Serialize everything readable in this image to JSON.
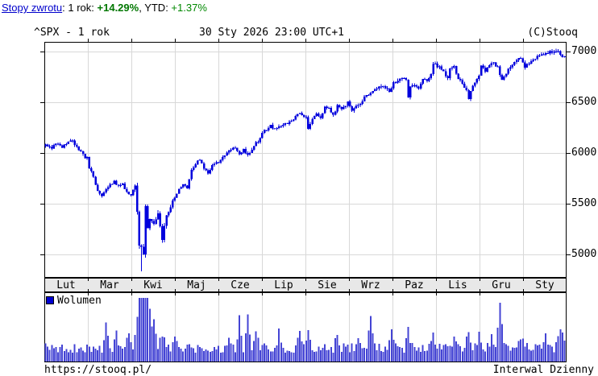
{
  "header": {
    "link_label": "Stopy zwrotu",
    "sep1": ": 1 rok: ",
    "return_1y": "+14.29%",
    "sep2": ", YTD: ",
    "return_ytd": "+1.37%"
  },
  "chart": {
    "title_left": "^SPX - 1 rok",
    "title_center": "30 Sty 2026 23:00 UTC+1",
    "title_right": "(C)Stooq"
  },
  "volume_pane": {
    "legend_label": "Wolumen"
  },
  "footer": {
    "url": "https://stooq.pl/",
    "interval_label": "Interwal Dzienny"
  },
  "colors": {
    "candle": "#0000dd",
    "volume_bar": "#4444d4",
    "volume_swatch": "#0000d0",
    "grid": "#d8d8d8",
    "border": "#000000",
    "band_bg": "#e8e8e8",
    "link": "#0000cc",
    "gain_bold": "#007700",
    "gain": "#008800"
  },
  "chart_data": {
    "type": "candlestick+volume",
    "symbol": "^SPX",
    "range": "1 rok",
    "timestamp": "30 Sty 2026 23:00 UTC+1",
    "interval": "Dzienny",
    "legend": "Wolumen",
    "months": [
      "Lut",
      "Mar",
      "Kwi",
      "Maj",
      "Cze",
      "Lip",
      "Sie",
      "Wrz",
      "Paz",
      "Lis",
      "Gru",
      "Sty"
    ],
    "y_ticks": [
      7000,
      6500,
      6000,
      5500,
      5000
    ],
    "y_axis_side": "right",
    "grid": true,
    "y_range_approx": [
      4770,
      7090
    ],
    "trading_days": 250,
    "returns": {
      "one_year_pct": 14.29,
      "ytd_pct": 1.37
    },
    "price_anchors": [
      [
        0,
        6072
      ],
      [
        3,
        6045
      ],
      [
        5,
        6090
      ],
      [
        8,
        6060
      ],
      [
        11,
        6115
      ],
      [
        13,
        6120
      ],
      [
        15,
        6060
      ],
      [
        17,
        6010
      ],
      [
        19,
        5955
      ],
      [
        20,
        5955
      ],
      [
        21,
        5850
      ],
      [
        23,
        5770
      ],
      [
        25,
        5620
      ],
      [
        27,
        5565
      ],
      [
        29,
        5640
      ],
      [
        31,
        5680
      ],
      [
        33,
        5715
      ],
      [
        35,
        5680
      ],
      [
        37,
        5695
      ],
      [
        39,
        5615
      ],
      [
        41,
        5585
      ],
      [
        42,
        5635
      ],
      [
        43,
        5675
      ],
      [
        44,
        5400
      ],
      [
        45,
        5075
      ],
      [
        46,
        5062
      ],
      [
        47,
        4983
      ],
      [
        48,
        5457
      ],
      [
        49,
        5268
      ],
      [
        50,
        5363
      ],
      [
        52,
        5283
      ],
      [
        54,
        5400
      ],
      [
        56,
        5160
      ],
      [
        58,
        5380
      ],
      [
        60,
        5485
      ],
      [
        62,
        5560
      ],
      [
        64,
        5640
      ],
      [
        66,
        5685
      ],
      [
        68,
        5660
      ],
      [
        70,
        5845
      ],
      [
        72,
        5890
      ],
      [
        74,
        5940
      ],
      [
        76,
        5845
      ],
      [
        78,
        5805
      ],
      [
        80,
        5880
      ],
      [
        82,
        5905
      ],
      [
        83,
        5912
      ],
      [
        85,
        5970
      ],
      [
        87,
        6000
      ],
      [
        89,
        6040
      ],
      [
        91,
        6045
      ],
      [
        93,
        5977
      ],
      [
        95,
        6030
      ],
      [
        97,
        5985
      ],
      [
        99,
        6025
      ],
      [
        101,
        6095
      ],
      [
        103,
        6140
      ],
      [
        104,
        6205
      ],
      [
        106,
        6230
      ],
      [
        108,
        6280
      ],
      [
        110,
        6230
      ],
      [
        112,
        6260
      ],
      [
        114,
        6268
      ],
      [
        116,
        6297
      ],
      [
        118,
        6310
      ],
      [
        120,
        6365
      ],
      [
        122,
        6390
      ],
      [
        124,
        6370
      ],
      [
        125,
        6360
      ],
      [
        126,
        6240
      ],
      [
        128,
        6345
      ],
      [
        130,
        6390
      ],
      [
        132,
        6340
      ],
      [
        134,
        6445
      ],
      [
        136,
        6450
      ],
      [
        138,
        6370
      ],
      [
        140,
        6465
      ],
      [
        142,
        6440
      ],
      [
        144,
        6460
      ],
      [
        145,
        6500
      ],
      [
        146,
        6460
      ],
      [
        147,
        6415
      ],
      [
        149,
        6460
      ],
      [
        151,
        6480
      ],
      [
        153,
        6545
      ],
      [
        155,
        6585
      ],
      [
        157,
        6600
      ],
      [
        159,
        6640
      ],
      [
        161,
        6655
      ],
      [
        163,
        6638
      ],
      [
        165,
        6605
      ],
      [
        166,
        6645
      ],
      [
        167,
        6690
      ],
      [
        168,
        6700
      ],
      [
        170,
        6725
      ],
      [
        172,
        6750
      ],
      [
        173,
        6735
      ],
      [
        174,
        6553
      ],
      [
        175,
        6655
      ],
      [
        177,
        6672
      ],
      [
        179,
        6630
      ],
      [
        181,
        6735
      ],
      [
        183,
        6700
      ],
      [
        185,
        6790
      ],
      [
        186,
        6875
      ],
      [
        187,
        6890
      ],
      [
        188,
        6840
      ],
      [
        189,
        6852
      ],
      [
        191,
        6796
      ],
      [
        193,
        6730
      ],
      [
        194,
        6833
      ],
      [
        196,
        6850
      ],
      [
        198,
        6738
      ],
      [
        200,
        6672
      ],
      [
        202,
        6617
      ],
      [
        203,
        6539
      ],
      [
        204,
        6603
      ],
      [
        206,
        6705
      ],
      [
        208,
        6766
      ],
      [
        209,
        6849
      ],
      [
        211,
        6812
      ],
      [
        213,
        6860
      ],
      [
        215,
        6886
      ],
      [
        217,
        6840
      ],
      [
        219,
        6721
      ],
      [
        221,
        6792
      ],
      [
        223,
        6848
      ],
      [
        226,
        6917
      ],
      [
        228,
        6940
      ],
      [
        230,
        6846
      ],
      [
        233,
        6902
      ],
      [
        236,
        6952
      ],
      [
        240,
        6989
      ],
      [
        244,
        7007
      ],
      [
        246,
        7012
      ],
      [
        247,
        6965
      ],
      [
        248,
        6930
      ],
      [
        249,
        6940
      ]
    ],
    "special_low": {
      "day": 46,
      "low": 4835
    },
    "volume_spikes": {
      "29": 26,
      "34": 16,
      "40": 22,
      "44": 28,
      "45": 36,
      "46": 44,
      "47": 36,
      "48": 60,
      "49": 38,
      "50": 28,
      "52": 32,
      "56": 20,
      "62": 14,
      "88": 16,
      "93": 36,
      "97": 40,
      "101": 20,
      "112": 18,
      "122": 22,
      "126": 18,
      "140": 16,
      "150": 14,
      "156": 40,
      "166": 18,
      "174": 24,
      "186": 16,
      "196": 14,
      "203": 24,
      "208": 18,
      "214": 16,
      "218": 52,
      "228": 14,
      "240": 14,
      "246": 18,
      "248": 24
    }
  }
}
